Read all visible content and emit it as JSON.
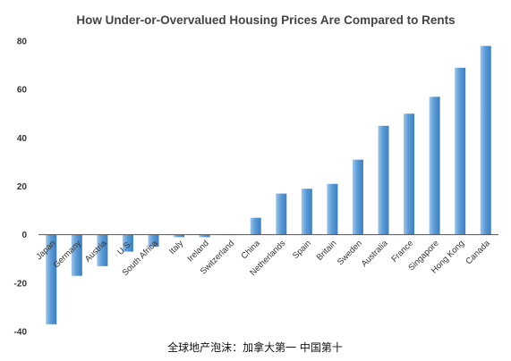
{
  "chart_data": {
    "type": "bar",
    "title": "How Under-or-Overvalued Housing Prices Are Compared to Rents",
    "xlabel": "",
    "ylabel": "",
    "ylim": [
      -40,
      80
    ],
    "yticks": [
      -40,
      -20,
      0,
      20,
      40,
      60,
      80
    ],
    "grid": false,
    "categories": [
      "Japan",
      "Germany",
      "Austria",
      "U.S.",
      "South Africa",
      "Italy",
      "Ireland",
      "Switzerland",
      "China",
      "Netherlands",
      "Spain",
      "Britain",
      "Sweden",
      "Australia",
      "France",
      "Singapore",
      "Hong Kong",
      "Canada"
    ],
    "values": [
      -37,
      -17,
      -13,
      -7,
      -5,
      -1,
      -1,
      0,
      7,
      17,
      19,
      21,
      31,
      45,
      50,
      57,
      69,
      78
    ],
    "bar_color": "#5b9bd5"
  },
  "caption": "全球地产泡沫：加拿大第一 中国第十"
}
